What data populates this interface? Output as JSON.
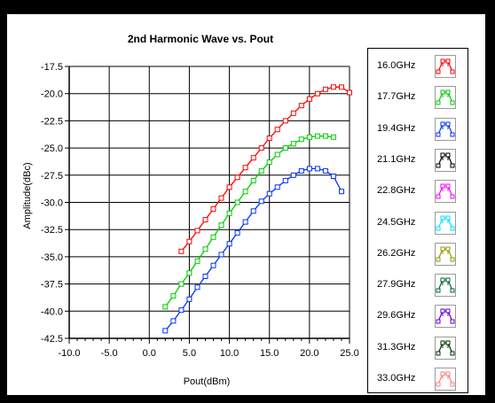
{
  "chart_data": {
    "type": "line",
    "title": "2nd Harmonic Wave vs. Pout",
    "xlabel": "Pout(dBm)",
    "ylabel": "Amplitude(dBc)",
    "xlim": [
      -10,
      25
    ],
    "ylim": [
      -42.5,
      -17.5
    ],
    "x_ticks": [
      "-10.0",
      "-5.0",
      "0.0",
      "5.0",
      "10.0",
      "15.0",
      "20.0",
      "25.0"
    ],
    "y_ticks": [
      "-17.5",
      "-20.0",
      "-22.5",
      "-25.0",
      "-27.5",
      "-30.0",
      "-32.5",
      "-35.0",
      "-37.5",
      "-40.0",
      "-42.5"
    ],
    "grid": true,
    "legend_position": "right",
    "series": [
      {
        "name": "16.0GHz",
        "color": "#ff0000",
        "x": [
          4,
          5,
          6,
          7,
          8,
          9,
          10,
          11,
          12,
          13,
          14,
          15,
          16,
          17,
          18,
          19,
          20,
          21,
          22,
          23,
          24,
          25
        ],
        "y": [
          -34.5,
          -33.6,
          -32.6,
          -31.6,
          -30.6,
          -29.6,
          -28.6,
          -27.7,
          -26.8,
          -25.9,
          -25.0,
          -24.1,
          -23.3,
          -22.5,
          -21.8,
          -21.1,
          -20.5,
          -20.0,
          -19.6,
          -19.4,
          -19.4,
          -19.9
        ]
      },
      {
        "name": "17.7GHz",
        "color": "#00cc00",
        "x": [
          2,
          3,
          4,
          5,
          6,
          7,
          8,
          9,
          10,
          11,
          12,
          13,
          14,
          15,
          16,
          17,
          18,
          19,
          20,
          21,
          22,
          23
        ],
        "y": [
          -39.6,
          -38.6,
          -37.5,
          -36.5,
          -35.4,
          -34.3,
          -33.2,
          -32.1,
          -31.0,
          -30.0,
          -29.0,
          -28.0,
          -27.1,
          -26.3,
          -25.6,
          -25.0,
          -24.6,
          -24.2,
          -24.0,
          -23.9,
          -23.9,
          -24.0
        ]
      },
      {
        "name": "19.4GHz",
        "color": "#0033ff",
        "x": [
          2,
          3,
          4,
          5,
          6,
          7,
          8,
          9,
          10,
          11,
          12,
          13,
          14,
          15,
          16,
          17,
          18,
          19,
          20,
          21,
          22,
          23,
          24
        ],
        "y": [
          -41.8,
          -40.9,
          -39.9,
          -38.9,
          -37.8,
          -36.8,
          -35.8,
          -34.8,
          -33.8,
          -32.8,
          -31.8,
          -30.8,
          -29.9,
          -29.2,
          -28.6,
          -28.0,
          -27.5,
          -27.1,
          -26.9,
          -26.9,
          -27.1,
          -27.6,
          -29.0
        ]
      }
    ],
    "legend_entries": [
      {
        "name": "16.0GHz",
        "color": "#ff0000"
      },
      {
        "name": "17.7GHz",
        "color": "#00cc00"
      },
      {
        "name": "19.4GHz",
        "color": "#0033ff"
      },
      {
        "name": "21.1GHz",
        "color": "#000000"
      },
      {
        "name": "22.8GHz",
        "color": "#ff00ff"
      },
      {
        "name": "24.5GHz",
        "color": "#00e5ff"
      },
      {
        "name": "26.2GHz",
        "color": "#999900"
      },
      {
        "name": "27.9GHz",
        "color": "#006633"
      },
      {
        "name": "29.6GHz",
        "color": "#6600cc"
      },
      {
        "name": "31.3GHz",
        "color": "#003300"
      },
      {
        "name": "33.0GHz",
        "color": "#ff8080"
      }
    ]
  }
}
